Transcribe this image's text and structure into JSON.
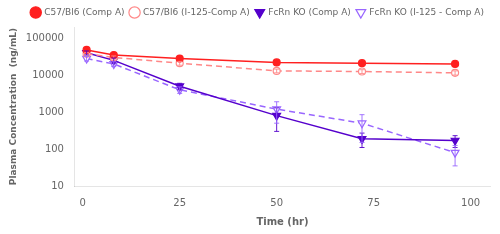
{
  "chart_data": {
    "type": "line",
    "xlabel": "Time (hr)",
    "ylabel": "Plasma Concentration  (ng/mL)",
    "x": [
      1,
      8,
      25,
      50,
      72,
      96
    ],
    "xlim": [
      -2,
      105
    ],
    "xticks": [
      0,
      25,
      50,
      75,
      100
    ],
    "ylim": [
      10,
      200000
    ],
    "yticks": [
      10,
      100,
      1000,
      10000,
      100000
    ],
    "log": "y",
    "grid": false,
    "legend": "upper right",
    "series": [
      {
        "name": "C57/Bl6 (Comp A)",
        "color": "#FF2020",
        "line_style": "solid",
        "marker": "circle",
        "values": [
          48000,
          35000,
          28000,
          22000,
          21000,
          20000
        ],
        "y_err_lo": [
          6000,
          4000,
          4000,
          3000,
          2500,
          2500
        ],
        "y_err_hi": [
          6000,
          4000,
          4000,
          3000,
          2500,
          2500
        ]
      },
      {
        "name": "C57/Bl6 (I-125-Comp A)",
        "color": "#FF8888",
        "line_style": "dashed",
        "marker": "circle_open",
        "values": [
          38000,
          30000,
          21000,
          13000,
          12500,
          11500
        ],
        "y_err_lo": [
          3000,
          3000,
          2500,
          1500,
          1500,
          1500
        ],
        "y_err_hi": [
          3000,
          3000,
          2500,
          1500,
          1500,
          1500
        ]
      },
      {
        "name": "FcRn KO (Comp A)",
        "color": "#5500CC",
        "line_style": "solid",
        "marker": "triangle_down",
        "values": [
          40000,
          25000,
          5000,
          800,
          190,
          170
        ],
        "y_err_lo": [
          5000,
          4000,
          1000,
          500,
          80,
          60
        ],
        "y_err_hi": [
          5000,
          4000,
          1000,
          500,
          80,
          60
        ]
      },
      {
        "name": "FcRn KO (I-125 - Comp A)",
        "color": "#9966FF",
        "line_style": "dashed",
        "marker": "triangle_down_open",
        "values": [
          28000,
          20000,
          4000,
          1200,
          500,
          80
        ],
        "y_err_lo": [
          4000,
          3000,
          800,
          700,
          350,
          45
        ],
        "y_err_hi": [
          4000,
          3000,
          800,
          700,
          350,
          45
        ]
      }
    ]
  }
}
